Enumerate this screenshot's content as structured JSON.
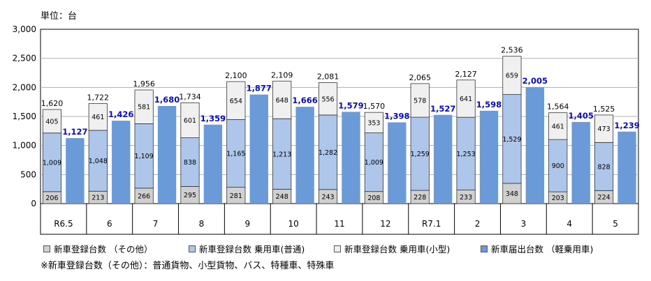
{
  "unit_label": "単位：台",
  "footnote": "※新車登録台数（その他）：普通貨物、小型貨物、バス、特種車、特殊車",
  "colors": {
    "other": "#d0d0d0",
    "futsu": "#aec6ea",
    "kogata": "#f0f0f0",
    "kei": "#6a9ad8",
    "kei_label": "#0a0ac8",
    "grid": "#b0b0b0"
  },
  "legend": [
    {
      "label": "新車登録台数 （その他）",
      "color": "#d0d0d0"
    },
    {
      "label": "新車登録台数 乗用車(普通)",
      "color": "#aec6ea"
    },
    {
      "label": "新車登録台数 乗用車(小型)",
      "color": "#f0f0f0"
    },
    {
      "label": "新車届出台数 （軽乗用車)",
      "color": "#6a9ad8"
    }
  ],
  "chart_data": {
    "type": "bar",
    "stacked_series": [
      "新車登録台数 （その他）",
      "新車登録台数 乗用車(普通)",
      "新車登録台数 乗用車(小型)"
    ],
    "unstacked_series": [
      "新車届出台数 （軽乗用車)"
    ],
    "categories": [
      "R6.5",
      "6",
      "7",
      "8",
      "9",
      "10",
      "11",
      "12",
      "R7.1",
      "2",
      "3",
      "4",
      "5"
    ],
    "series": [
      {
        "name": "新車登録台数 （その他）",
        "values": [
          206,
          213,
          266,
          295,
          281,
          248,
          243,
          208,
          228,
          233,
          348,
          203,
          224
        ]
      },
      {
        "name": "新車登録台数 乗用車(普通)",
        "values": [
          1009,
          1048,
          1109,
          838,
          1165,
          1213,
          1282,
          1009,
          1259,
          1253,
          1529,
          900,
          828
        ]
      },
      {
        "name": "新車登録台数 乗用車(小型)",
        "values": [
          405,
          461,
          581,
          601,
          654,
          648,
          556,
          353,
          578,
          641,
          659,
          461,
          473
        ]
      },
      {
        "name": "新車届出台数 （軽乗用車)",
        "values": [
          1127,
          1426,
          1680,
          1359,
          1877,
          1666,
          1579,
          1398,
          1527,
          1598,
          2005,
          1405,
          1239
        ]
      }
    ],
    "value_labels": {
      "other": [
        "206",
        "213",
        "266",
        "295",
        "281",
        "248",
        "243",
        "208",
        "228",
        "233",
        "348",
        "203",
        "224"
      ],
      "futsu": [
        "1,009",
        "1,048",
        "1,109",
        "838",
        "1,165",
        "1,213",
        "1,282",
        "1,009",
        "1,259",
        "1,253",
        "1,529",
        "900",
        "828"
      ],
      "kogata": [
        "405",
        "461",
        "581",
        "601",
        "654",
        "648",
        "556",
        "353",
        "578",
        "641",
        "659",
        "461",
        "473"
      ],
      "registered_total": [
        "1,620",
        "1,722",
        "1,956",
        "1,734",
        "2,100",
        "2,109",
        "2,081",
        "1,570",
        "2,065",
        "2,127",
        "2,536",
        "1,564",
        "1,525"
      ],
      "kei": [
        "1,127",
        "1,426",
        "1,680",
        "1,359",
        "1,877",
        "1,666",
        "1,579",
        "1,398",
        "1,527",
        "1,598",
        "2,005",
        "1,405",
        "1,239"
      ]
    },
    "ylim": [
      0,
      3000
    ],
    "yticks": [
      0,
      500,
      1000,
      1500,
      2000,
      2500,
      3000
    ],
    "ytick_labels": [
      "0",
      "500",
      "1,000",
      "1,500",
      "2,000",
      "2,500",
      "3,000"
    ],
    "grid": true,
    "legend_position": "bottom"
  }
}
